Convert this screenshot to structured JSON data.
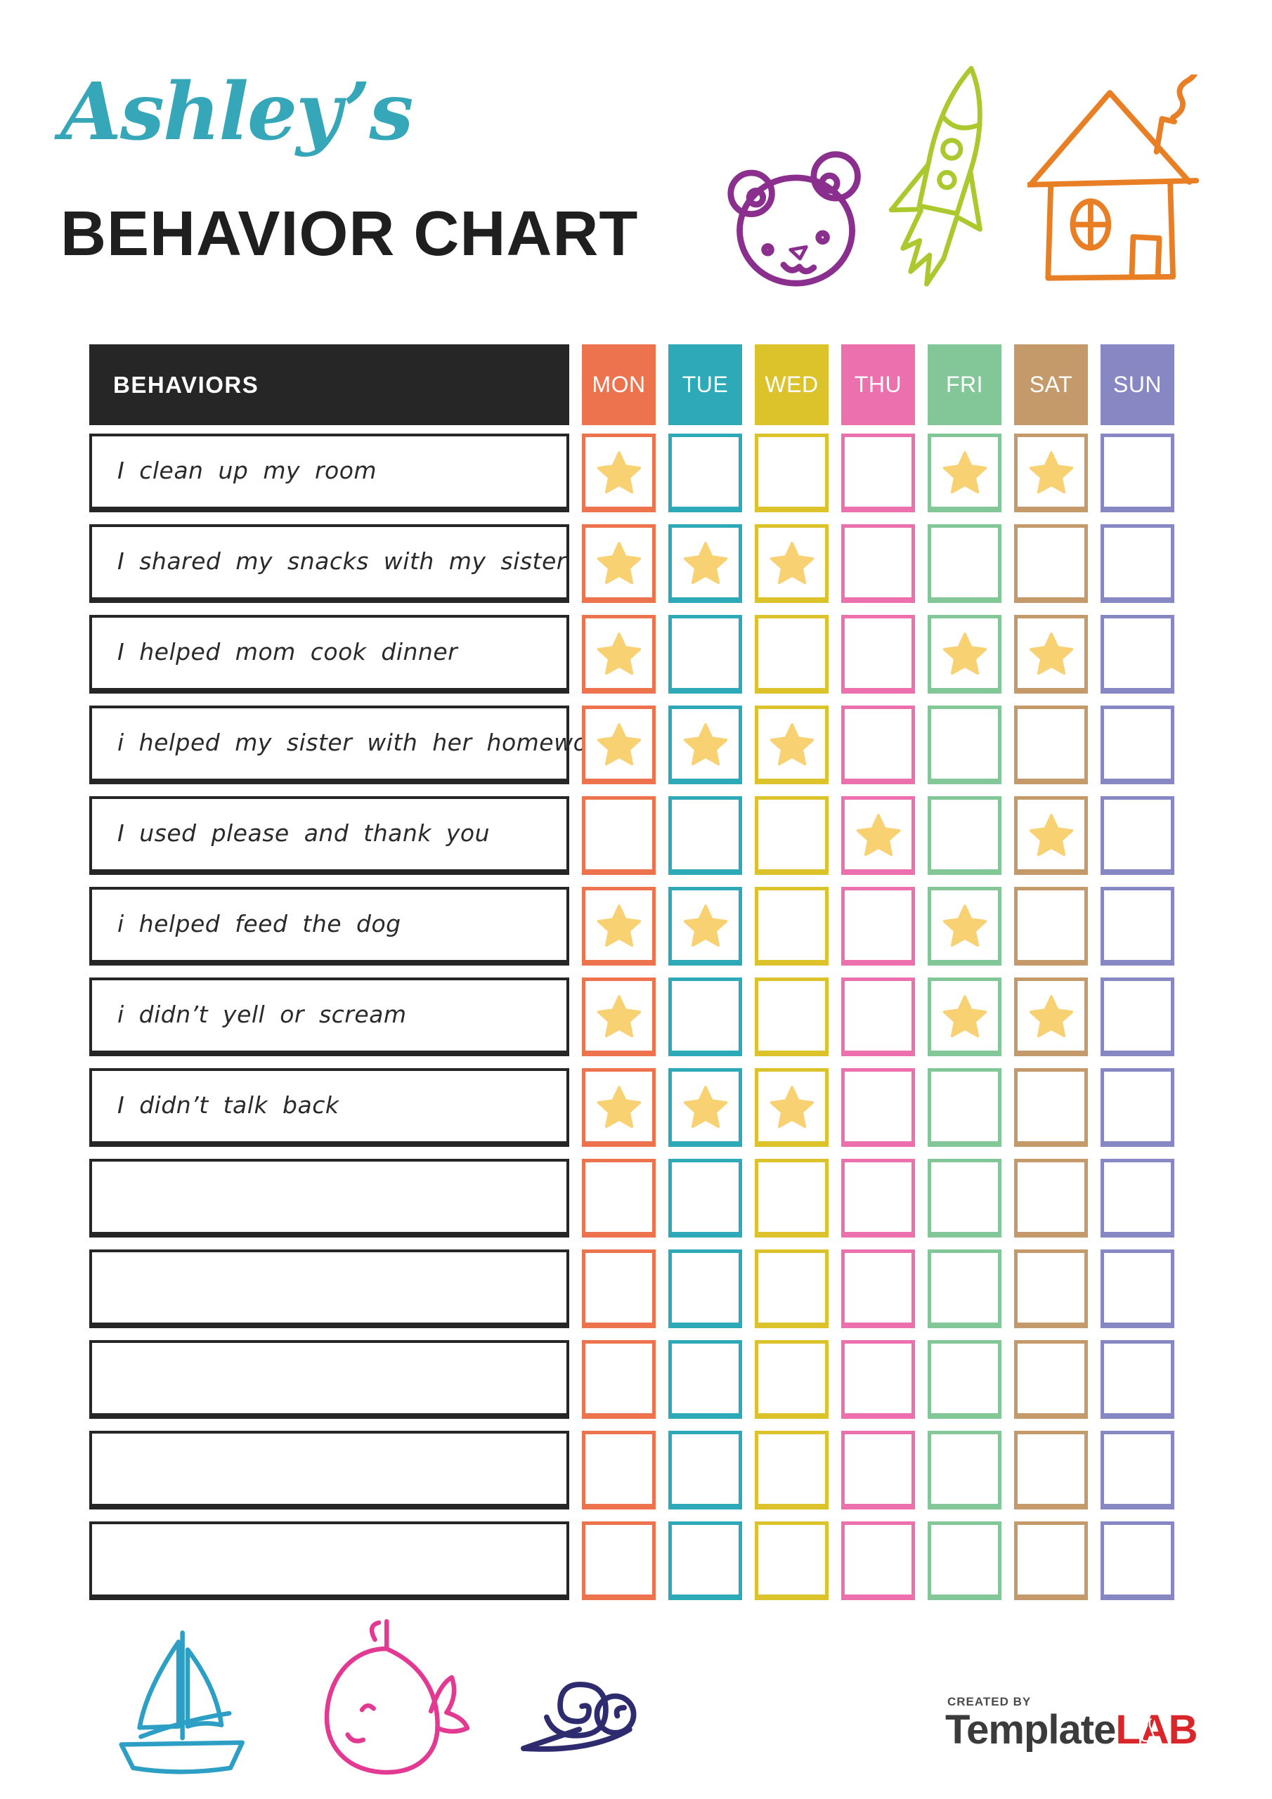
{
  "header": {
    "name_script": "Ashley’s",
    "title": "BEHAVIOR CHART"
  },
  "colors": {
    "title_script": "#35A7B9",
    "title_main": "#1F1F1F",
    "table_header_bg": "#262626",
    "behavior_border": "#262626",
    "star": "#F8D173",
    "bear": "#8A2F8D",
    "rocket": "#ABC92F",
    "house": "#E87F25",
    "sailboat": "#2E9FC4",
    "whale": "#E23A92",
    "snail": "#2E2C6F",
    "created_by": "#4A4A4A",
    "brand_name": "#3B3B3B",
    "brand_suffix": "#D8262B"
  },
  "icons": {
    "star": "★",
    "top_doodles": [
      "teddy-bear",
      "rocket",
      "house"
    ],
    "bottom_doodles": [
      "sailboat",
      "whale",
      "snail"
    ]
  },
  "table": {
    "behaviors_label": "BEHAVIORS",
    "days": [
      {
        "label": "MON",
        "color": "#ED724E"
      },
      {
        "label": "TUE",
        "color": "#2EA9B8"
      },
      {
        "label": "WED",
        "color": "#DCC32B"
      },
      {
        "label": "THU",
        "color": "#EC6FAE"
      },
      {
        "label": "FRI",
        "color": "#83C697"
      },
      {
        "label": "SAT",
        "color": "#C49A6B"
      },
      {
        "label": "SUN",
        "color": "#8787C4"
      }
    ],
    "rows": [
      {
        "behavior": "I clean up my room",
        "stars": [
          1,
          0,
          0,
          0,
          1,
          1,
          0
        ]
      },
      {
        "behavior": "I shared my snacks with my sister",
        "stars": [
          1,
          1,
          1,
          0,
          0,
          0,
          0
        ]
      },
      {
        "behavior": "I helped mom cook dinner",
        "stars": [
          1,
          0,
          0,
          0,
          1,
          1,
          0
        ]
      },
      {
        "behavior": "i helped my sister with her homework",
        "stars": [
          1,
          1,
          1,
          0,
          0,
          0,
          0
        ]
      },
      {
        "behavior": "I used please and thank you",
        "stars": [
          0,
          0,
          0,
          1,
          0,
          1,
          0
        ]
      },
      {
        "behavior": "i helped feed the dog",
        "stars": [
          1,
          1,
          0,
          0,
          1,
          0,
          0
        ]
      },
      {
        "behavior": "i didn’t yell or scream",
        "stars": [
          1,
          0,
          0,
          0,
          1,
          1,
          0
        ]
      },
      {
        "behavior": "I didn’t talk back",
        "stars": [
          1,
          1,
          1,
          0,
          0,
          0,
          0
        ]
      },
      {
        "behavior": "",
        "stars": [
          0,
          0,
          0,
          0,
          0,
          0,
          0
        ]
      },
      {
        "behavior": "",
        "stars": [
          0,
          0,
          0,
          0,
          0,
          0,
          0
        ]
      },
      {
        "behavior": "",
        "stars": [
          0,
          0,
          0,
          0,
          0,
          0,
          0
        ]
      },
      {
        "behavior": "",
        "stars": [
          0,
          0,
          0,
          0,
          0,
          0,
          0
        ]
      },
      {
        "behavior": "",
        "stars": [
          0,
          0,
          0,
          0,
          0,
          0,
          0
        ]
      }
    ]
  },
  "footer": {
    "created_by": "CREATED BY",
    "brand_name": "Template",
    "brand_suffix": "LAB"
  }
}
